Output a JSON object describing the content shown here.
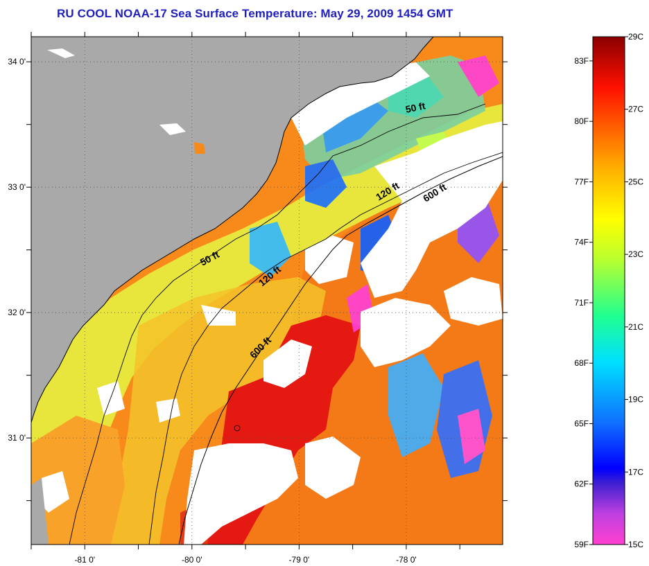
{
  "title": "RU COOL  NOAA-17  Sea Surface Temperature:  May 29, 2009 1454 GMT",
  "map": {
    "lon_range": [
      -81.5,
      -77.1
    ],
    "lat_range": [
      30.15,
      34.2
    ],
    "lon_ticks": [
      {
        "value": -81,
        "label": "-81 0'"
      },
      {
        "value": -80,
        "label": "-80 0'"
      },
      {
        "value": -79,
        "label": "-79 0'"
      },
      {
        "value": -78,
        "label": "-78 0'"
      }
    ],
    "lat_ticks": [
      {
        "value": 34,
        "label": "34 0'"
      },
      {
        "value": 33,
        "label": "33 0'"
      },
      {
        "value": 32,
        "label": "32 0'"
      },
      {
        "value": 31,
        "label": "31 0'"
      }
    ],
    "grid": "dotted",
    "colors": {
      "land": "#a9a9a9",
      "cloud": "#ffffff",
      "warm_core": "#e01010",
      "orange": "#f98a1a",
      "yellow": "#e6ee3a",
      "cold": "#2080ff"
    },
    "isobaths": [
      {
        "label": "50 ft",
        "placement": "north shelf"
      },
      {
        "label": "50 ft",
        "placement": "mid shelf"
      },
      {
        "label": "120 ft",
        "placement": "north shelf"
      },
      {
        "label": "120 ft",
        "placement": "mid shelf"
      },
      {
        "label": "600 ft",
        "placement": "north slope"
      },
      {
        "label": "600 ft",
        "placement": "south slope"
      }
    ]
  },
  "colorbar": {
    "fahrenheit_labels": [
      "83F",
      "80F",
      "77F",
      "74F",
      "71F",
      "68F",
      "65F",
      "62F",
      "59F"
    ],
    "celsius_labels": [
      "29C",
      "27C",
      "25C",
      "23C",
      "21C",
      "19C",
      "17C",
      "15C"
    ],
    "range_c": [
      15,
      29
    ]
  }
}
